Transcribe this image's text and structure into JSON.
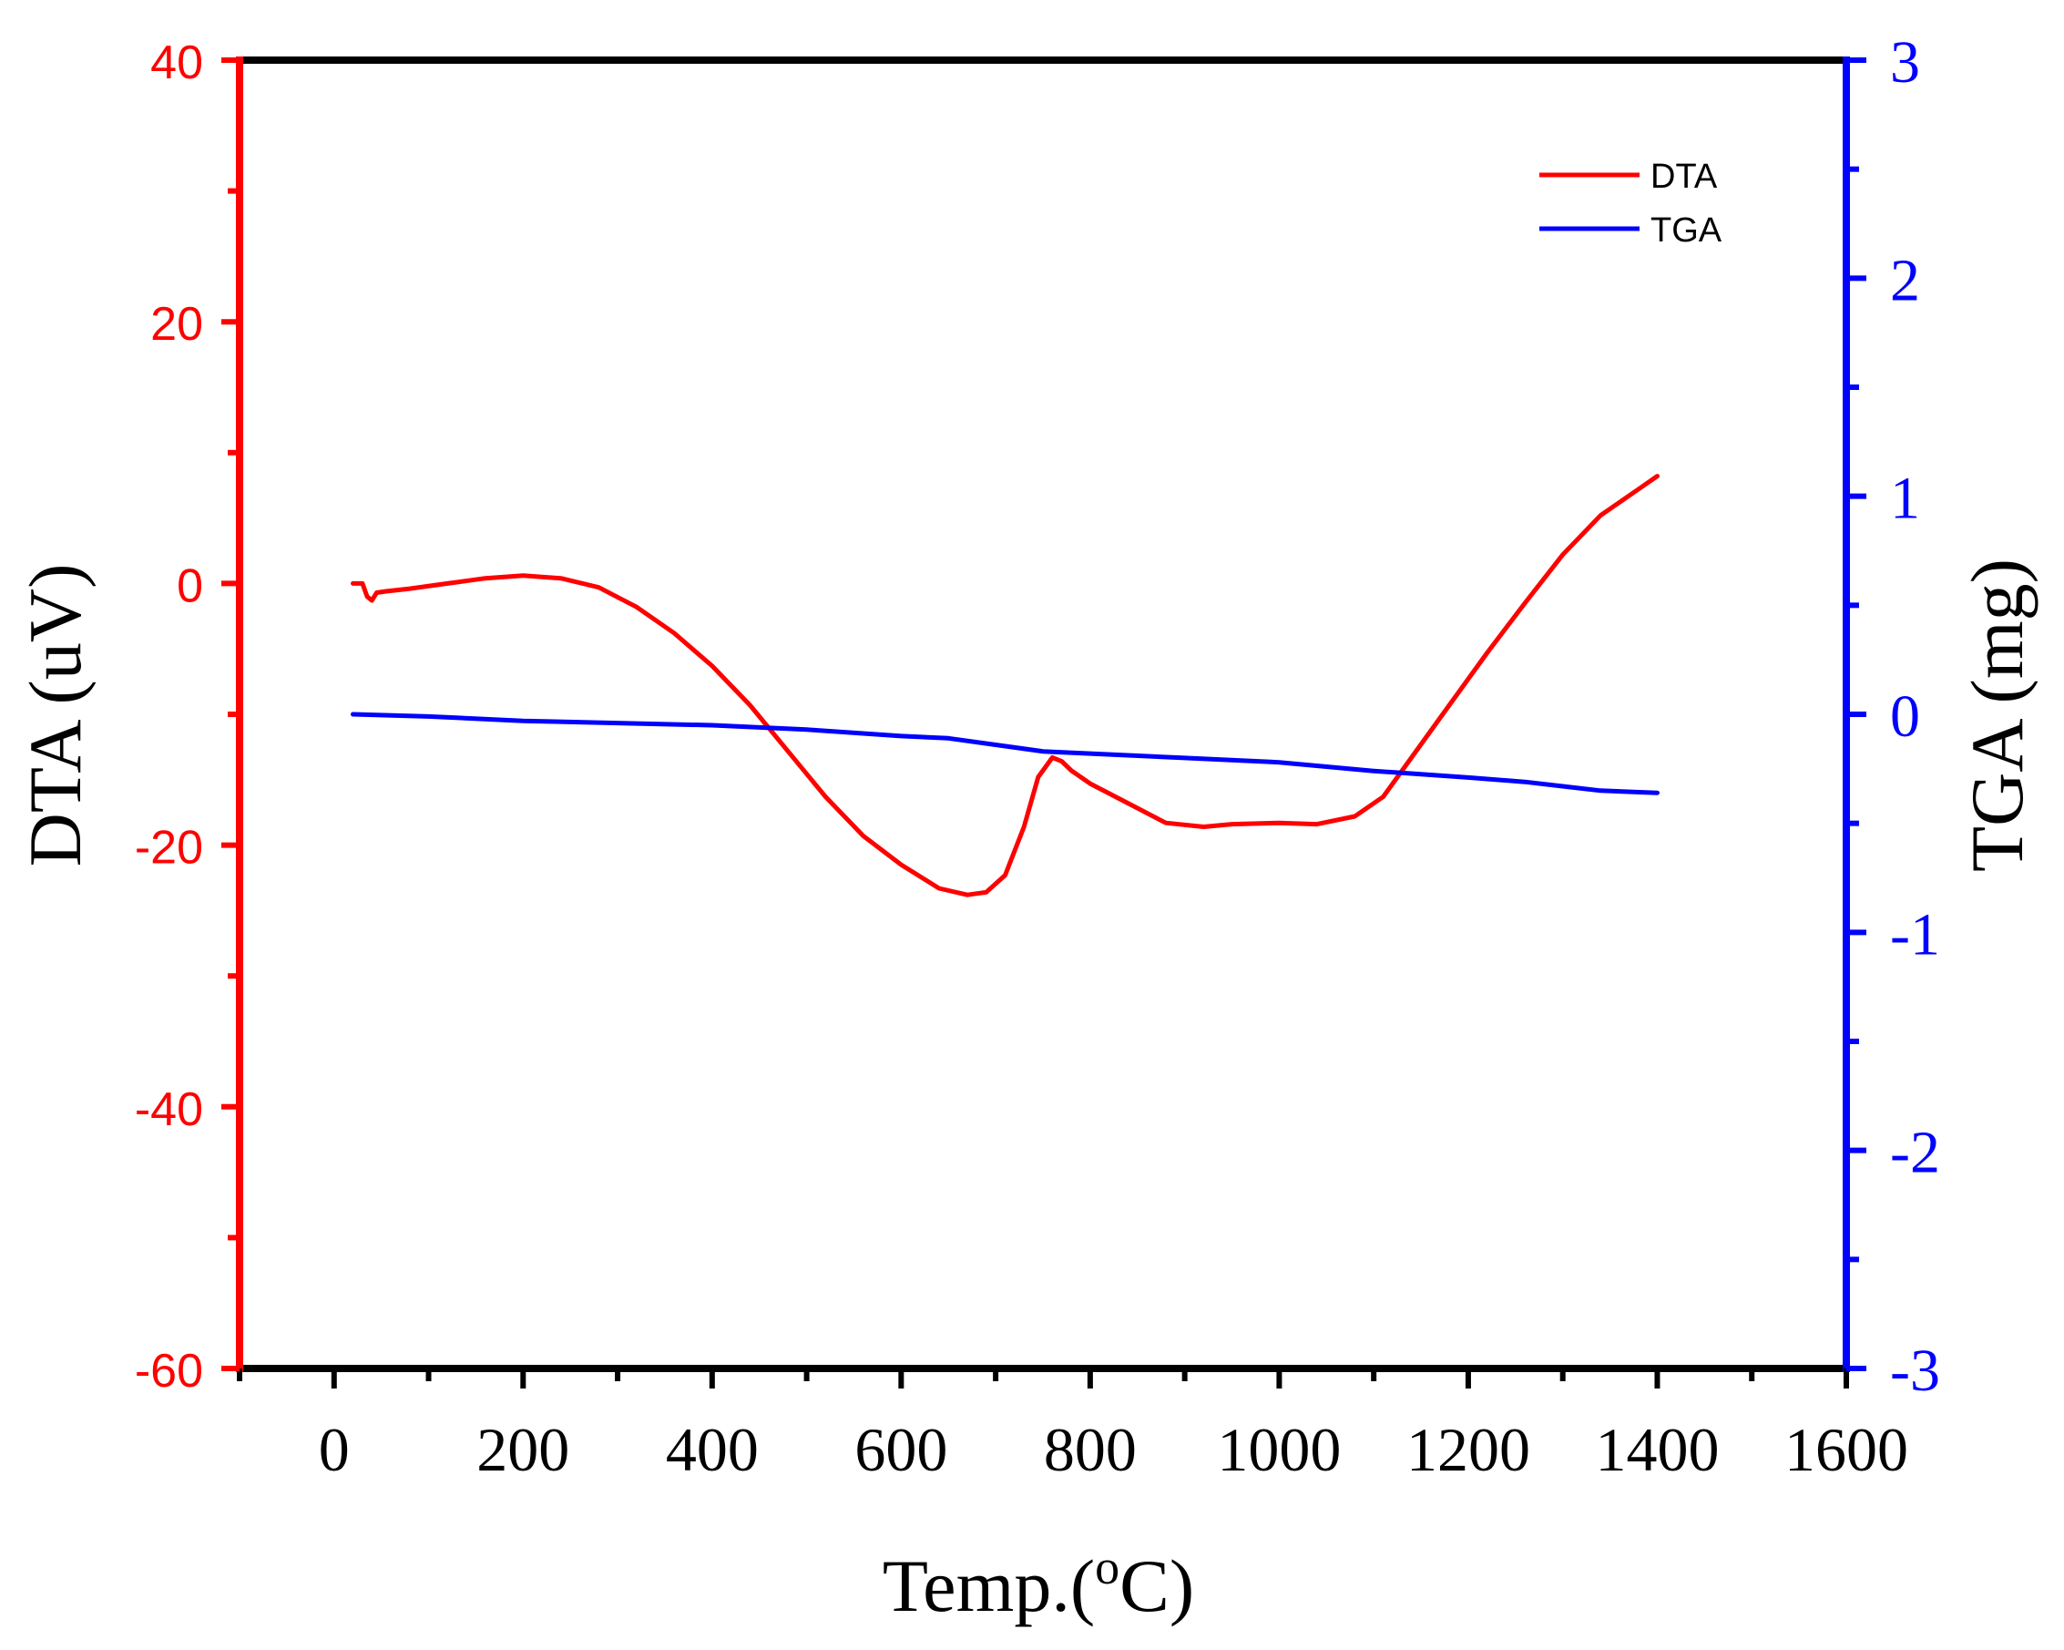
{
  "chart_data": {
    "type": "line",
    "title": "",
    "xlabel": "Temp.(",
    "xlabel_sup": "o",
    "xlabel_tail": "C)",
    "ylabel_left": "DTA (uV)",
    "ylabel_right": "TGA (mg)",
    "xlim": [
      -100,
      1600
    ],
    "ylim_left": [
      -60,
      40
    ],
    "ylim_right": [
      -3,
      3
    ],
    "x_ticks": [
      0,
      200,
      400,
      600,
      800,
      1000,
      1200,
      1400,
      1600
    ],
    "x_tick_labels": [
      "0",
      "200",
      "400",
      "600",
      "800",
      "1000",
      "1200",
      "1400",
      "1600"
    ],
    "y_left_ticks": [
      -60,
      -40,
      -20,
      0,
      20,
      40
    ],
    "y_left_tick_labels": [
      "-60",
      "-40",
      "-20",
      "0",
      "20",
      "40"
    ],
    "y_right_ticks": [
      -3,
      -2,
      -1,
      0,
      1,
      2,
      3
    ],
    "y_right_tick_labels": [
      "-3",
      "-2",
      "-1",
      "0",
      "1",
      "2",
      "3"
    ],
    "legend": {
      "position": "top-right",
      "entries": [
        "DTA",
        "TGA"
      ]
    },
    "colors": {
      "DTA": "#ff0000",
      "TGA": "#0000ff",
      "frame": "#000000"
    },
    "series": [
      {
        "name": "DTA",
        "axis": "left",
        "x": [
          20,
          30,
          35,
          40,
          45,
          55,
          80,
          120,
          160,
          200,
          240,
          280,
          320,
          360,
          400,
          440,
          480,
          520,
          560,
          600,
          640,
          670,
          690,
          710,
          730,
          745,
          760,
          770,
          780,
          800,
          840,
          880,
          920,
          950,
          1000,
          1040,
          1080,
          1110,
          1140,
          1180,
          1220,
          1260,
          1300,
          1340,
          1380,
          1400
        ],
        "y": [
          0,
          0,
          -1,
          -1.3,
          -0.7,
          -0.6,
          -0.4,
          0,
          0.4,
          0.6,
          0.4,
          -0.3,
          -1.8,
          -3.8,
          -6.3,
          -9.3,
          -12.8,
          -16.3,
          -19.3,
          -21.5,
          -23.3,
          -23.8,
          -23.6,
          -22.3,
          -18.6,
          -14.8,
          -13.3,
          -13.6,
          -14.3,
          -15.3,
          -16.8,
          -18.3,
          -18.6,
          -18.4,
          -18.3,
          -18.4,
          -17.8,
          -16.3,
          -13.3,
          -9.3,
          -5.3,
          -1.5,
          2.2,
          5.2,
          7.2,
          8.2
        ]
      },
      {
        "name": "TGA",
        "axis": "right",
        "x": [
          20,
          100,
          200,
          300,
          400,
          500,
          600,
          650,
          700,
          750,
          800,
          900,
          1000,
          1100,
          1200,
          1260,
          1300,
          1340,
          1400
        ],
        "y": [
          0,
          -0.01,
          -0.03,
          -0.04,
          -0.05,
          -0.07,
          -0.1,
          -0.11,
          -0.14,
          -0.17,
          -0.18,
          -0.2,
          -0.22,
          -0.26,
          -0.29,
          -0.31,
          -0.33,
          -0.35,
          -0.36
        ]
      }
    ]
  }
}
